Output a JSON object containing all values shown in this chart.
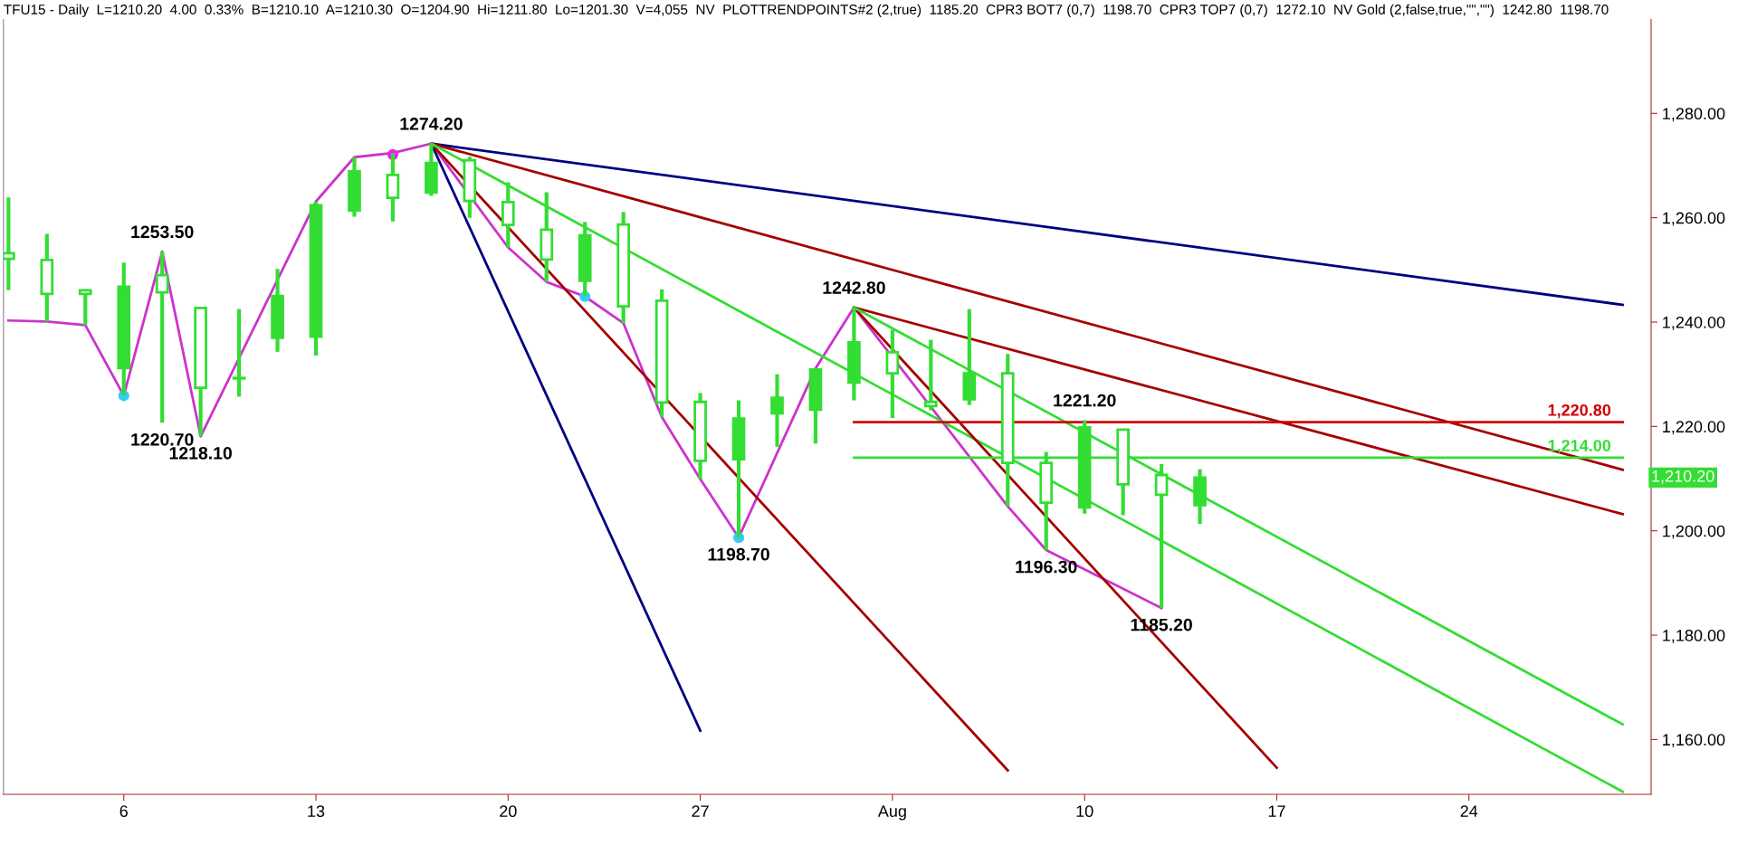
{
  "chart_data": {
    "type": "candlestick",
    "title": "TFU15 - Daily  L=1210.20  4.00  0.33%  B=1210.10  A=1210.30  O=1204.90  Hi=1211.80  Lo=1201.30  V=4,055  NV  PLOTTRENDPOINTS#2 (2,true)  1185.20  CPR3 BOT7 (0,7)  1198.70  CPR3 TOP7 (0,7)  1272.10  NV Gold (2,false,true,\"\",\"\")  1242.80  1198.70",
    "categories": [
      null,
      null,
      null,
      "6",
      null,
      null,
      null,
      null,
      "13",
      null,
      null,
      null,
      null,
      "20",
      null,
      null,
      null,
      null,
      "27",
      null,
      null,
      null,
      null,
      "Aug",
      null,
      null,
      null,
      null,
      "10",
      null,
      null,
      null,
      null,
      "17",
      null,
      null,
      null,
      null,
      "24",
      null,
      null,
      null,
      null
    ],
    "ohlc": [
      [
        1253.2,
        1263.9,
        1246.1,
        1252.1
      ],
      [
        1251.9,
        1256.9,
        1240.1,
        1245.4
      ],
      [
        1246.1,
        1246.3,
        1239.4,
        1245.4
      ],
      [
        1231.2,
        1251.4,
        1225.9,
        1246.8
      ],
      [
        1249.0,
        1253.5,
        1220.7,
        1245.7
      ],
      [
        1242.7,
        1242.9,
        1218.1,
        1227.4
      ],
      [
        1229.3,
        1242.5,
        1225.7,
        1229.2
      ],
      [
        1237.0,
        1250.2,
        1234.3,
        1245.0
      ],
      [
        1237.2,
        1263.1,
        1233.6,
        1262.4
      ],
      [
        1261.4,
        1271.6,
        1260.2,
        1268.9
      ],
      [
        1268.2,
        1272.4,
        1259.3,
        1263.8
      ],
      [
        1264.8,
        1274.2,
        1264.2,
        1270.5
      ],
      [
        1271.0,
        1271.7,
        1260.0,
        1263.2
      ],
      [
        1263.0,
        1266.8,
        1254.3,
        1258.6
      ],
      [
        1257.7,
        1264.9,
        1247.7,
        1252.0
      ],
      [
        1247.9,
        1259.2,
        1244.9,
        1256.6
      ],
      [
        1258.7,
        1261.1,
        1239.8,
        1243.0
      ],
      [
        1244.1,
        1246.3,
        1221.8,
        1224.6
      ],
      [
        1224.7,
        1226.4,
        1209.9,
        1213.4
      ],
      [
        1213.7,
        1225.0,
        1198.7,
        1221.5
      ],
      [
        1222.5,
        1230.0,
        1216.1,
        1225.5
      ],
      [
        1223.2,
        1231.1,
        1216.7,
        1230.9
      ],
      [
        1228.4,
        1242.8,
        1225.0,
        1236.1
      ],
      [
        1234.2,
        1238.5,
        1221.6,
        1230.2
      ],
      [
        1224.7,
        1236.6,
        1223.1,
        1223.9
      ],
      [
        1225.2,
        1242.5,
        1224.1,
        1230.2
      ],
      [
        1230.2,
        1233.9,
        1204.7,
        1213.0
      ],
      [
        1213.0,
        1215.1,
        1196.3,
        1205.4
      ],
      [
        1204.5,
        1221.2,
        1203.3,
        1219.8
      ],
      [
        1219.4,
        1219.5,
        1203.0,
        1208.9
      ],
      [
        1210.7,
        1212.8,
        1185.2,
        1206.9
      ],
      [
        1204.9,
        1211.8,
        1201.3,
        1210.2
      ],
      null,
      null,
      null,
      null,
      null,
      null,
      null,
      null,
      null,
      null,
      null
    ],
    "color": "#33dd33",
    "series": [
      {
        "type": "line",
        "color": "#cc33cc",
        "values": [
          1240.3,
          1240.1,
          1239.4,
          1225.9,
          1253.5,
          1218.1,
          null,
          null,
          1263.1,
          1271.6,
          1272.4,
          1274.2,
          null,
          1254.3,
          1247.7,
          1244.9,
          1239.8,
          1221.8,
          1209.9,
          1198.7,
          null,
          1231.1,
          1242.8,
          null,
          null,
          null,
          1204.7,
          1196.3,
          null,
          null,
          1185.2,
          null,
          null,
          null,
          null,
          null,
          null,
          null,
          null,
          null,
          null,
          null,
          null
        ]
      },
      {
        "type": "line",
        "color": "#000080",
        "values": [
          null,
          null,
          null,
          null,
          null,
          null,
          null,
          null,
          null,
          null,
          null,
          1274.2,
          null,
          null,
          null,
          null,
          null,
          null,
          1161.7,
          null,
          null,
          null,
          null,
          null,
          null,
          null,
          null,
          null,
          null,
          null,
          null,
          null,
          null,
          null,
          null,
          null,
          null,
          null,
          null,
          null,
          null,
          null,
          null
        ]
      },
      {
        "type": "line",
        "color": "#000080",
        "values": [
          null,
          null,
          null,
          null,
          null,
          null,
          null,
          null,
          null,
          null,
          null,
          1274.2,
          null,
          null,
          null,
          null,
          null,
          null,
          null,
          null,
          null,
          null,
          null,
          null,
          null,
          null,
          null,
          null,
          null,
          null,
          null,
          null,
          null,
          null,
          null,
          null,
          null,
          null,
          null,
          null,
          null,
          null,
          1243.3
        ]
      },
      {
        "type": "line",
        "color": "#a50000",
        "values": [
          null,
          null,
          null,
          null,
          null,
          null,
          null,
          null,
          null,
          null,
          null,
          1274.2,
          null,
          null,
          null,
          null,
          null,
          null,
          null,
          null,
          null,
          null,
          null,
          null,
          null,
          null,
          1154.1,
          null,
          null,
          null,
          null,
          null,
          null,
          null,
          null,
          null,
          null,
          null,
          null,
          null,
          null,
          null,
          null
        ]
      },
      {
        "type": "line",
        "color": "#a50000",
        "values": [
          null,
          null,
          null,
          null,
          null,
          null,
          null,
          null,
          null,
          null,
          null,
          1274.2,
          null,
          null,
          null,
          null,
          null,
          null,
          null,
          null,
          null,
          null,
          null,
          null,
          null,
          null,
          null,
          null,
          null,
          null,
          null,
          null,
          null,
          null,
          null,
          null,
          null,
          null,
          null,
          null,
          null,
          null,
          1211.7
        ]
      },
      {
        "type": "line",
        "color": "#33dd33",
        "values": [
          null,
          null,
          null,
          null,
          null,
          null,
          null,
          null,
          null,
          null,
          null,
          1274.2,
          null,
          null,
          null,
          null,
          null,
          null,
          null,
          null,
          null,
          null,
          null,
          null,
          null,
          null,
          null,
          null,
          null,
          null,
          null,
          null,
          null,
          null,
          null,
          null,
          null,
          null,
          null,
          null,
          null,
          null,
          1150.0
        ]
      },
      {
        "type": "line",
        "color": "#a50000",
        "values": [
          null,
          null,
          null,
          null,
          null,
          null,
          null,
          null,
          null,
          null,
          null,
          null,
          null,
          null,
          null,
          null,
          null,
          null,
          null,
          null,
          null,
          null,
          1242.8,
          null,
          null,
          null,
          null,
          null,
          null,
          null,
          null,
          null,
          null,
          1154.6,
          null,
          null,
          null,
          null,
          null,
          null,
          null,
          null,
          null
        ]
      },
      {
        "type": "line",
        "color": "#a50000",
        "values": [
          null,
          null,
          null,
          null,
          null,
          null,
          null,
          null,
          null,
          null,
          null,
          null,
          null,
          null,
          null,
          null,
          null,
          null,
          null,
          null,
          null,
          null,
          1242.8,
          null,
          null,
          null,
          null,
          null,
          null,
          null,
          null,
          null,
          null,
          null,
          null,
          null,
          null,
          null,
          null,
          null,
          null,
          null,
          1203.2
        ]
      },
      {
        "type": "line",
        "color": "#33dd33",
        "values": [
          null,
          null,
          null,
          null,
          null,
          null,
          null,
          null,
          null,
          null,
          null,
          null,
          null,
          null,
          null,
          null,
          null,
          null,
          null,
          null,
          null,
          null,
          1242.8,
          null,
          null,
          null,
          null,
          null,
          null,
          null,
          null,
          null,
          null,
          null,
          null,
          null,
          null,
          null,
          null,
          null,
          null,
          null,
          1162.9
        ]
      },
      {
        "type": "line",
        "name": "1,220.80",
        "color": "#d00000",
        "values": [
          null,
          null,
          null,
          null,
          null,
          null,
          null,
          null,
          null,
          null,
          null,
          null,
          null,
          null,
          null,
          null,
          null,
          null,
          null,
          null,
          null,
          null,
          1220.8,
          null,
          null,
          null,
          null,
          null,
          null,
          null,
          null,
          null,
          null,
          null,
          null,
          null,
          null,
          null,
          null,
          null,
          null,
          null,
          1220.8
        ]
      },
      {
        "type": "line",
        "name": "1,214.00",
        "color": "#33dd33",
        "values": [
          null,
          null,
          null,
          null,
          null,
          null,
          null,
          null,
          null,
          null,
          null,
          null,
          null,
          null,
          null,
          null,
          null,
          null,
          null,
          null,
          null,
          null,
          1214.0,
          null,
          null,
          null,
          null,
          null,
          null,
          null,
          null,
          null,
          null,
          null,
          null,
          null,
          null,
          null,
          null,
          null,
          null,
          null,
          1214.0
        ]
      },
      {
        "type": "scatter",
        "color": "#33ccff",
        "values": [
          null,
          null,
          null,
          1225.9,
          null,
          null,
          null,
          null,
          null,
          null,
          null,
          null,
          null,
          null,
          null,
          1244.9,
          null,
          null,
          null,
          1198.7,
          null,
          null,
          null,
          null,
          null,
          null,
          null,
          null,
          null,
          null,
          null,
          null,
          null,
          null,
          null,
          null,
          null,
          null,
          null,
          null,
          null,
          null,
          null
        ]
      },
      {
        "type": "scatter",
        "color": "#ee22ee",
        "values": [
          null,
          null,
          null,
          null,
          null,
          null,
          null,
          null,
          null,
          null,
          1272.1,
          null,
          null,
          null,
          null,
          null,
          null,
          null,
          null,
          null,
          null,
          null,
          null,
          null,
          null,
          null,
          null,
          null,
          null,
          null,
          null,
          null,
          null,
          null,
          null,
          null,
          null,
          null,
          null,
          null,
          null,
          null,
          null
        ]
      }
    ],
    "annotations": [
      {
        "text": "1253.50",
        "y": 1253.5
      },
      {
        "text": "1220.70",
        "y": 1220.7
      },
      {
        "text": "1218.10",
        "y": 1218.1
      },
      {
        "text": "1274.20",
        "y": 1274.2
      },
      {
        "text": "1198.70",
        "y": 1198.7
      },
      {
        "text": "1242.80",
        "y": 1242.8
      },
      {
        "text": "1196.30",
        "y": 1196.3
      },
      {
        "text": "1221.20",
        "y": 1221.2
      },
      {
        "text": "1185.20",
        "y": 1185.2
      },
      "1,210.20"
    ],
    "ylim": [
      1149.5,
      1298
    ],
    "yticks": [
      {
        "value": 1160,
        "label": "1,160.00"
      },
      {
        "value": 1180,
        "label": "1,180.00"
      },
      {
        "value": 1200,
        "label": "1,200.00"
      },
      {
        "value": 1220,
        "label": "1,220.00"
      },
      {
        "value": 1240,
        "label": "1,240.00"
      },
      {
        "value": 1260,
        "label": "1,260.00"
      },
      {
        "value": 1280,
        "label": "1,280.00"
      }
    ],
    "grid": false,
    "legend": false
  }
}
